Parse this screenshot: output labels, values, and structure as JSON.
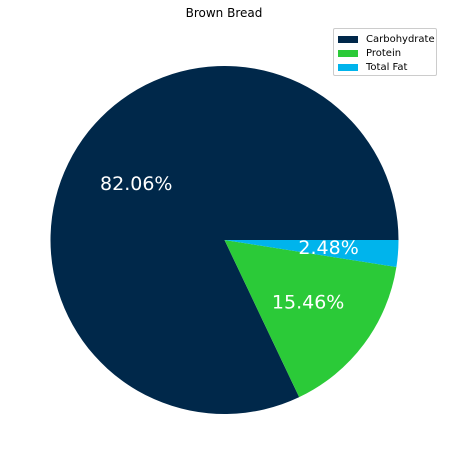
{
  "chart_data": {
    "type": "pie",
    "title": "Brown Bread",
    "labels": [
      "Carbohydrate",
      "Protein",
      "Total Fat"
    ],
    "values": [
      82.06,
      15.46,
      2.48
    ],
    "value_labels": [
      "82.06%",
      "15.46%",
      "2.48%"
    ],
    "colors": [
      "#00284a",
      "#2bca38",
      "#00b4ec"
    ],
    "start_angle_deg": 0,
    "direction": "counterclockwise",
    "legend_position": "top-right"
  }
}
